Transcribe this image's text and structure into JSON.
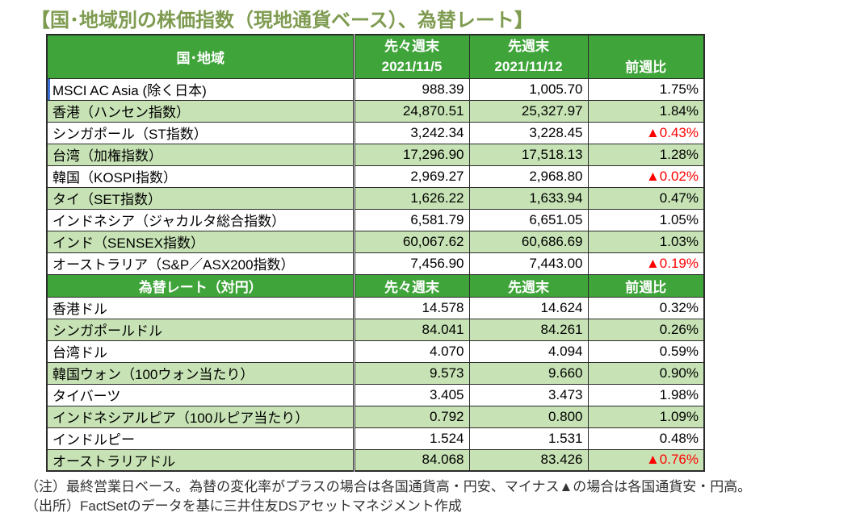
{
  "title": "【国･地域別の株価指数（現地通貨ベース）、為替レート】",
  "colors": {
    "header_green": "#3FA43A",
    "row_light_green": "#C7E3B5",
    "negative_red": "#FF0000",
    "title_olive": "#7E9B50",
    "border_dark": "#2B2B2B"
  },
  "indices_table": {
    "header": {
      "region": "国･地域",
      "week_before_last_label": "先々週末",
      "week_before_last_date": "2021/11/5",
      "last_week_label": "先週末",
      "last_week_date": "2021/11/12",
      "wow_change": "前週比"
    },
    "rows": [
      {
        "name": "MSCI AC Asia (除く日本)",
        "week_before_last": "988.39",
        "last_week": "1,005.70",
        "change": "1.75%",
        "negative": false
      },
      {
        "name": "香港（ハンセン指数）",
        "week_before_last": "24,870.51",
        "last_week": "25,327.97",
        "change": "1.84%",
        "negative": false
      },
      {
        "name": "シンガポール（ST指数）",
        "week_before_last": "3,242.34",
        "last_week": "3,228.45",
        "change": "▲0.43%",
        "negative": true
      },
      {
        "name": "台湾（加権指数）",
        "week_before_last": "17,296.90",
        "last_week": "17,518.13",
        "change": "1.28%",
        "negative": false
      },
      {
        "name": "韓国（KOSPI指数）",
        "week_before_last": "2,969.27",
        "last_week": "2,968.80",
        "change": "▲0.02%",
        "negative": true
      },
      {
        "name": "タイ（SET指数）",
        "week_before_last": "1,626.22",
        "last_week": "1,633.94",
        "change": "0.47%",
        "negative": false
      },
      {
        "name": "インドネシア（ジャカルタ総合指数）",
        "week_before_last": "6,581.79",
        "last_week": "6,651.05",
        "change": "1.05%",
        "negative": false
      },
      {
        "name": "インド（SENSEX指数）",
        "week_before_last": "60,067.62",
        "last_week": "60,686.69",
        "change": "1.03%",
        "negative": false
      },
      {
        "name": "オーストラリア（S&P／ASX200指数）",
        "week_before_last": "7,456.90",
        "last_week": "7,443.00",
        "change": "▲0.19%",
        "negative": true
      }
    ]
  },
  "fx_table": {
    "header": {
      "label": "為替レート（対円）",
      "week_before_last": "先々週末",
      "last_week": "先週末",
      "wow_change": "前週比"
    },
    "rows": [
      {
        "name": "香港ドル",
        "week_before_last": "14.578",
        "last_week": "14.624",
        "change": "0.32%",
        "negative": false
      },
      {
        "name": "シンガポールドル",
        "week_before_last": "84.041",
        "last_week": "84.261",
        "change": "0.26%",
        "negative": false
      },
      {
        "name": "台湾ドル",
        "week_before_last": "4.070",
        "last_week": "4.094",
        "change": "0.59%",
        "negative": false
      },
      {
        "name": "韓国ウォン（100ウォン当たり）",
        "week_before_last": "9.573",
        "last_week": "9.660",
        "change": "0.90%",
        "negative": false
      },
      {
        "name": "タイバーツ",
        "week_before_last": "3.405",
        "last_week": "3.473",
        "change": "1.98%",
        "negative": false
      },
      {
        "name": "インドネシアルピア（100ルピア当たり）",
        "week_before_last": "0.792",
        "last_week": "0.800",
        "change": "1.09%",
        "negative": false
      },
      {
        "name": "インドルピー",
        "week_before_last": "1.524",
        "last_week": "1.531",
        "change": "0.48%",
        "negative": false
      },
      {
        "name": "オーストラリアドル",
        "week_before_last": "84.068",
        "last_week": "83.426",
        "change": "▲0.76%",
        "negative": true
      }
    ]
  },
  "notes": {
    "line1": "（注）最終営業日ベース。為替の変化率がプラスの場合は各国通貨高・円安、マイナス▲の場合は各国通貨安・円高。",
    "line2": "（出所）FactSetのデータを基に三井住友DSアセットマネジメント作成"
  }
}
